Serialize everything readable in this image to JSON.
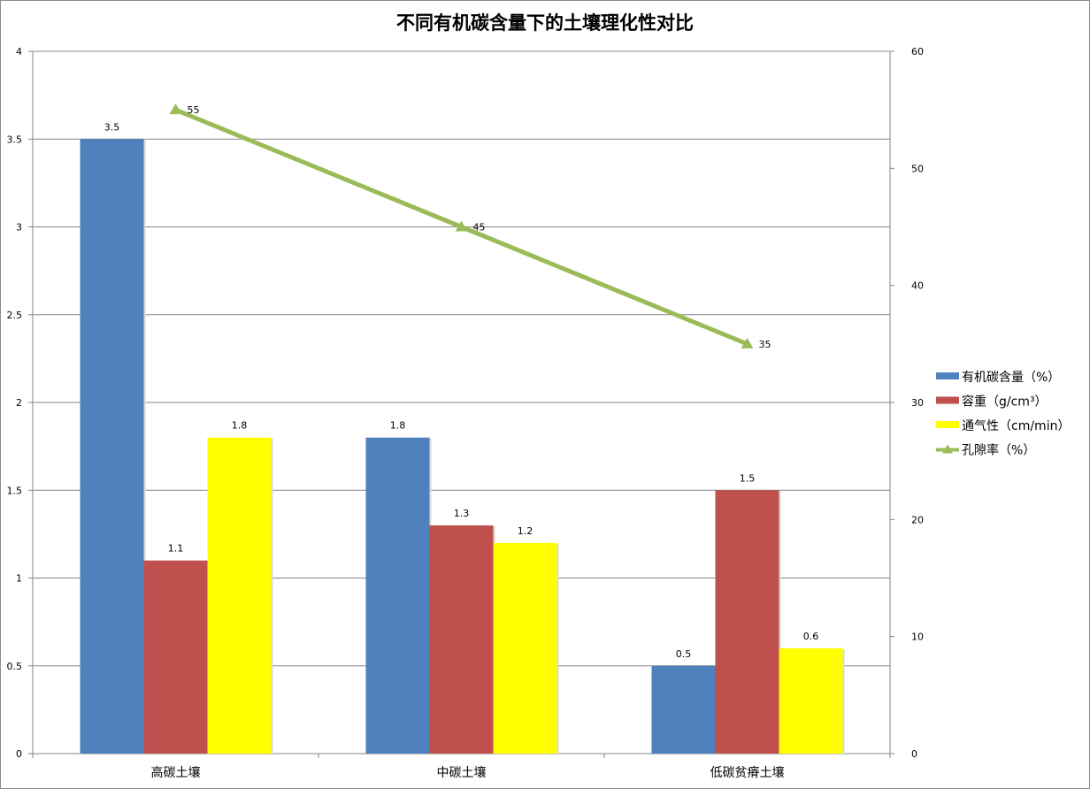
{
  "chart_data": {
    "type": "bar",
    "title": "不同有机碳含量下的土壤理化性对比",
    "categories": [
      "高碳土壤",
      "中碳土壤",
      "低碳贫瘠土壤"
    ],
    "series": [
      {
        "name": "有机碳含量（%）",
        "type": "bar",
        "axis": "left",
        "color": "#4f81bd",
        "values": [
          3.5,
          1.8,
          0.5
        ]
      },
      {
        "name": "容重（g/cm³）",
        "type": "bar",
        "axis": "left",
        "color": "#c0504d",
        "values": [
          1.1,
          1.3,
          1.5
        ]
      },
      {
        "name": "通气性（cm/min）",
        "type": "bar",
        "axis": "left",
        "color": "#ffff00",
        "values": [
          1.8,
          1.2,
          0.6
        ]
      },
      {
        "name": "孔隙率（%）",
        "type": "line",
        "axis": "right",
        "color": "#9bbb59",
        "marker": "triangle",
        "values": [
          55,
          45,
          35
        ]
      }
    ],
    "ylim_left": [
      0,
      4
    ],
    "yticks_left": [
      "0",
      "0.5",
      "1",
      "1.5",
      "2",
      "2.5",
      "3",
      "3.5",
      "4"
    ],
    "ylim_right": [
      0,
      60
    ],
    "yticks_right": [
      "0",
      "10",
      "20",
      "30",
      "40",
      "50",
      "60"
    ],
    "grid": true,
    "legend_position": "right",
    "data_labels": true
  }
}
